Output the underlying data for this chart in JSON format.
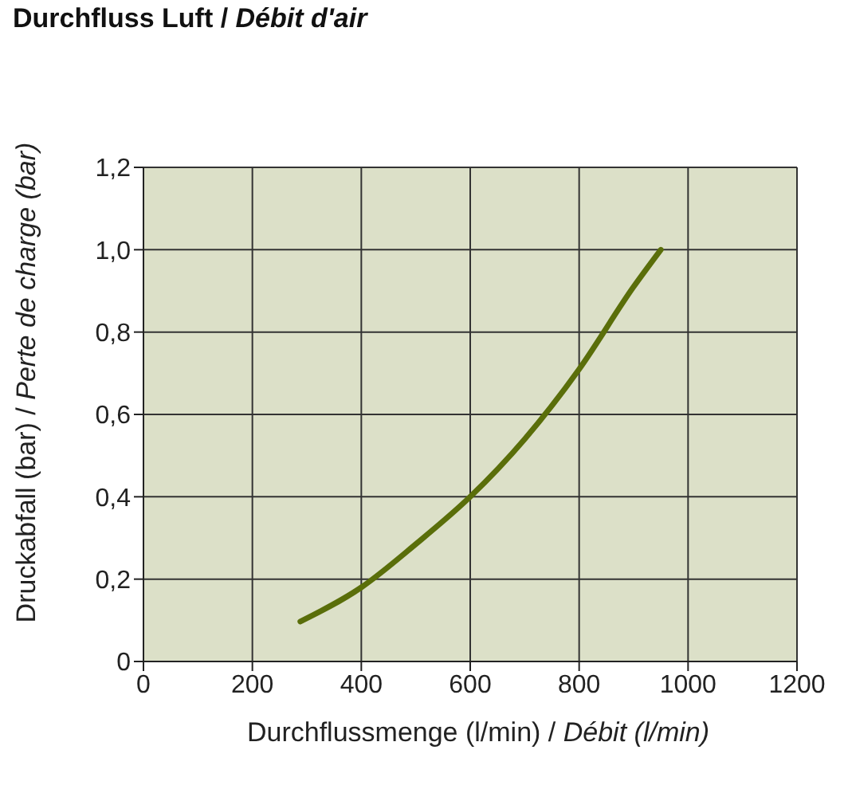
{
  "chart_data": {
    "type": "line",
    "title": "Durchfluss Luft / Débit d'air",
    "xlabel": "Durchflussmenge (l/min) / Débit (l/min)",
    "ylabel": "Druckabfall (bar) / Perte de charge (bar)",
    "x": [
      288,
      400,
      500,
      600,
      700,
      800,
      900,
      950
    ],
    "series": [
      {
        "color": "#5a6e0a",
        "values": [
          0.097,
          0.18,
          0.285,
          0.4,
          0.54,
          0.71,
          0.91,
          1.0
        ]
      }
    ],
    "xlim": [
      0,
      1200
    ],
    "xticks": [
      0,
      200,
      400,
      600,
      800,
      1000,
      1200
    ],
    "ylim": [
      0,
      1.2
    ],
    "yticks": [
      0,
      {
        "value": 0.2,
        "label": "0,2"
      },
      {
        "value": 0.4,
        "label": "0,4"
      },
      {
        "value": 0.6,
        "label": "0,6"
      },
      {
        "value": 0.8,
        "label": "0,8"
      },
      {
        "value": 1.0,
        "label": "1,0"
      },
      {
        "value": 1.2,
        "label": "1,2"
      }
    ],
    "grid": true
  }
}
